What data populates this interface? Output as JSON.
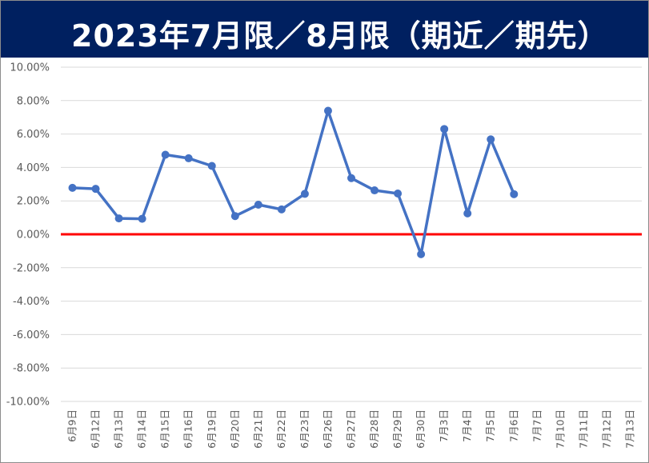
{
  "chart_data": {
    "type": "line",
    "title": "2023年7月限／8月限（期近／期先）",
    "ylim": [
      -10,
      10
    ],
    "y_step": 2,
    "y_tick_labels": [
      "10.00%",
      "8.00%",
      "6.00%",
      "4.00%",
      "2.00%",
      "0.00%",
      "-2.00%",
      "-4.00%",
      "-6.00%",
      "-8.00%",
      "-10.00%"
    ],
    "grid": true,
    "categories": [
      "6月9日",
      "6月12日",
      "6月13日",
      "6月14日",
      "6月15日",
      "6月16日",
      "6月19日",
      "6月20日",
      "6月21日",
      "6月22日",
      "6月23日",
      "6月26日",
      "6月27日",
      "6月28日",
      "6月29日",
      "6月30日",
      "7月3日",
      "7月4日",
      "7月5日",
      "7月6日",
      "7月7日",
      "7月10日",
      "7月11日",
      "7月12日",
      "7月13日"
    ],
    "series": [
      {
        "color": "#4472C4",
        "values": [
          2.78,
          2.72,
          0.95,
          0.93,
          4.76,
          4.55,
          4.09,
          1.09,
          1.77,
          1.49,
          2.42,
          7.39,
          3.36,
          2.63,
          2.44,
          -1.19,
          6.3,
          1.25,
          5.68,
          2.4,
          null,
          null,
          null,
          null,
          null
        ]
      }
    ],
    "zero_line_color": "#FF0000"
  }
}
